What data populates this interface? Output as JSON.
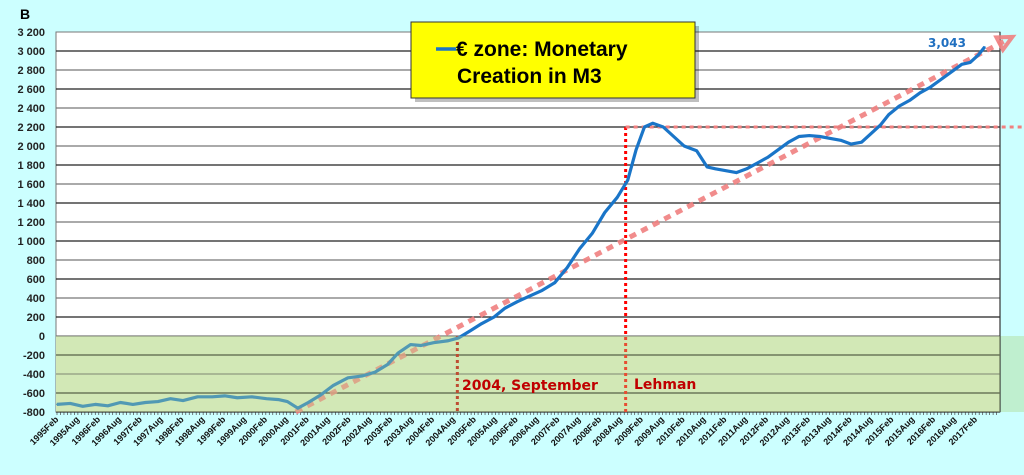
{
  "chart_data": {
    "type": "line",
    "title_line1": "€ zone: Monetary",
    "title_line2": "Creation in M3",
    "ylabel": "B",
    "ylim": [
      -800,
      3200
    ],
    "yticks": [
      3200,
      3000,
      2800,
      2600,
      2400,
      2200,
      2000,
      1800,
      1600,
      1400,
      1200,
      1000,
      800,
      600,
      400,
      200,
      0,
      -200,
      -400,
      -600,
      -800
    ],
    "ytick_labels": [
      "3 200",
      "3 000",
      "2 800",
      "2 600",
      "2 400",
      "2 200",
      "2 000",
      "1 800",
      "1 600",
      "1 400",
      "1 200",
      "1 000",
      "800",
      "600",
      "400",
      "200",
      "0",
      "-200",
      "-400",
      "-600",
      "-800"
    ],
    "xtick_labels": [
      "1995Feb",
      "1995Aug",
      "1996Feb",
      "1996Aug",
      "1997Feb",
      "1997Aug",
      "1998Feb",
      "1998Aug",
      "1999Feb",
      "1999Aug",
      "2000Feb",
      "2000Aug",
      "2001Feb",
      "2001Aug",
      "2002Feb",
      "2002Aug",
      "2003Feb",
      "2003Aug",
      "2004Feb",
      "2004Aug",
      "2005Feb",
      "2005Aug",
      "2006Feb",
      "2006Aug",
      "2007Feb",
      "2007Aug",
      "2008Feb",
      "2008Aug",
      "2009Feb",
      "2009Aug",
      "2010Feb",
      "2010Aug",
      "2011Feb",
      "2011Aug",
      "2012Feb",
      "2012Aug",
      "2013Feb",
      "2013Aug",
      "2014Feb",
      "2014Aug",
      "2015Feb",
      "2015Aug",
      "2016Feb",
      "2016Aug",
      "2017Feb"
    ],
    "series": [
      {
        "name": "€ zone: Monetary Creation in M3",
        "color": "#1a75c8",
        "x": [
          1995.08,
          1995.4,
          1995.7,
          1996.0,
          1996.3,
          1996.6,
          1996.9,
          1997.2,
          1997.5,
          1997.8,
          1998.1,
          1998.45,
          1998.8,
          1999.1,
          1999.4,
          1999.75,
          2000.1,
          2000.4,
          2000.6,
          2000.85,
          2001.1,
          2001.4,
          2001.7,
          2002.05,
          2002.4,
          2002.7,
          2003.0,
          2003.25,
          2003.55,
          2003.8,
          2004.1,
          2004.45,
          2004.7,
          2005.0,
          2005.25,
          2005.55,
          2005.8,
          2006.1,
          2006.4,
          2006.7,
          2007.0,
          2007.3,
          2007.6,
          2007.9,
          2008.2,
          2008.5,
          2008.75,
          2008.95,
          2009.15,
          2009.35,
          2009.6,
          2009.85,
          2010.1,
          2010.4,
          2010.65,
          2010.85,
          2011.1,
          2011.35,
          2011.6,
          2011.85,
          2012.1,
          2012.35,
          2012.6,
          2012.85,
          2013.1,
          2013.35,
          2013.6,
          2013.85,
          2014.1,
          2014.35,
          2014.6,
          2014.8,
          2015.0,
          2015.25,
          2015.5,
          2015.75,
          2016.0,
          2016.25,
          2016.5,
          2016.75,
          2016.95,
          2017.15,
          2017.3
        ],
        "values": [
          -720,
          -710,
          -740,
          -720,
          -735,
          -700,
          -720,
          -700,
          -690,
          -660,
          -680,
          -640,
          -640,
          -630,
          -650,
          -640,
          -660,
          -670,
          -690,
          -760,
          -700,
          -620,
          -520,
          -440,
          -420,
          -380,
          -300,
          -180,
          -90,
          -100,
          -70,
          -50,
          -20,
          60,
          130,
          200,
          290,
          360,
          420,
          480,
          560,
          720,
          920,
          1080,
          1300,
          1460,
          1640,
          1960,
          2200,
          2240,
          2200,
          2100,
          2000,
          1950,
          1780,
          1760,
          1740,
          1720,
          1760,
          1820,
          1880,
          1960,
          2040,
          2100,
          2110,
          2100,
          2080,
          2060,
          2020,
          2040,
          2140,
          2220,
          2330,
          2420,
          2480,
          2560,
          2620,
          2700,
          2780,
          2860,
          2880,
          2960,
          3043
        ]
      }
    ],
    "trend_line": {
      "x": [
        2000.8,
        2017.75
      ],
      "values": [
        -800,
        3100
      ],
      "color": "#f08080"
    },
    "peak_level": {
      "value": 2200,
      "from_x": 2008.7,
      "color": "#ff0000"
    },
    "annotations": [
      {
        "label": "2004, September",
        "x": 2004.67
      },
      {
        "label": "Lehman",
        "x": 2008.7
      }
    ],
    "last_value_label": "3,043",
    "negative_zone_color": "#dfeecb",
    "background": "#ccffff"
  }
}
